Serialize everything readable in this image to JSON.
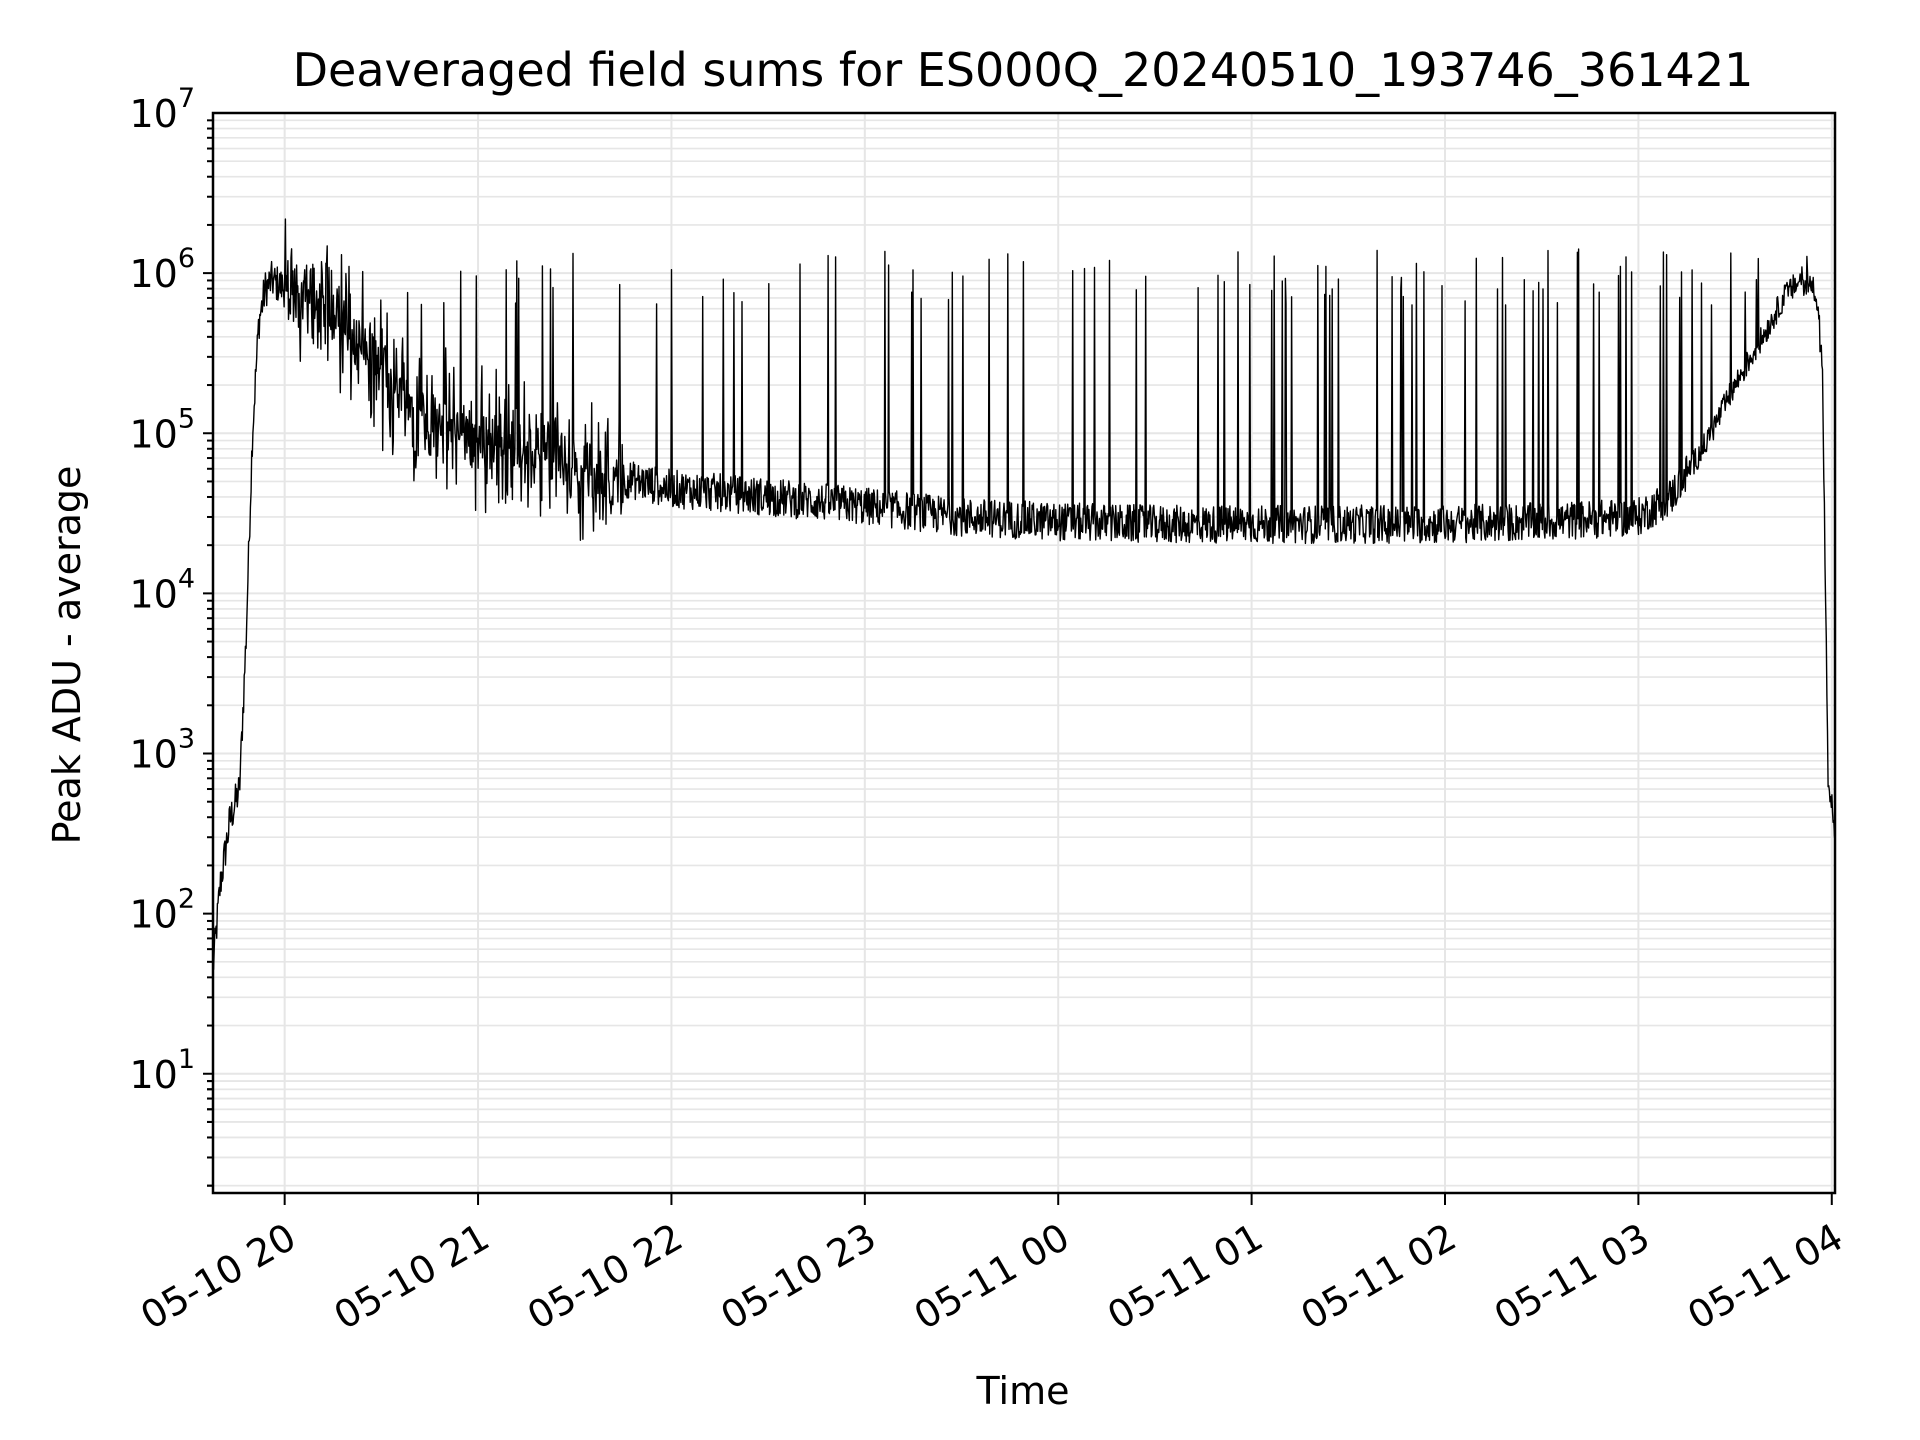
{
  "chart_data": {
    "type": "line",
    "title": "Deaveraged field sums for ES000Q_20240510_193746_361421",
    "xlabel": "Time",
    "ylabel": "Peak ADU - average",
    "yscale": "log",
    "ylim": [
      1.8,
      10000000
    ],
    "xlim": [
      "2024-05-10 19:37:46",
      "2024-05-11 04:01:00"
    ],
    "grid": true,
    "x_ticks": [
      "05-10 20",
      "05-10 21",
      "05-10 22",
      "05-10 23",
      "05-11 00",
      "05-11 01",
      "05-11 02",
      "05-11 03",
      "05-11 04"
    ],
    "y_ticks": [
      {
        "value": 10,
        "base": "10",
        "exp": "1"
      },
      {
        "value": 100,
        "base": "10",
        "exp": "2"
      },
      {
        "value": 1000,
        "base": "10",
        "exp": "3"
      },
      {
        "value": 10000,
        "base": "10",
        "exp": "4"
      },
      {
        "value": 100000,
        "base": "10",
        "exp": "5"
      },
      {
        "value": 1000000,
        "base": "10",
        "exp": "6"
      },
      {
        "value": 10000000,
        "base": "10",
        "exp": "7"
      }
    ],
    "line_color": "#000000",
    "grid_color": "#e6e6e6",
    "series": [
      {
        "x": [
          "2024-05-10 19:37:46",
          "2024-05-10 19:40",
          "2024-05-10 19:43",
          "2024-05-10 19:46",
          "2024-05-10 19:48",
          "2024-05-10 19:50",
          "2024-05-10 19:52",
          "2024-05-10 19:54",
          "2024-05-10 19:56",
          "2024-05-10 19:58",
          "2024-05-10 20:05",
          "2024-05-10 20:10",
          "2024-05-10 20:15",
          "2024-05-10 20:20",
          "2024-05-10 20:25",
          "2024-05-10 20:30",
          "2024-05-10 20:40",
          "2024-05-10 20:50",
          "2024-05-10 21:00",
          "2024-05-10 21:20",
          "2024-05-10 21:40",
          "2024-05-10 22:00",
          "2024-05-10 22:30",
          "2024-05-10 23:00",
          "2024-05-10 23:30",
          "2024-05-11 00:00",
          "2024-05-11 00:30",
          "2024-05-11 01:00",
          "2024-05-11 01:30",
          "2024-05-11 02:00",
          "2024-05-11 02:30",
          "2024-05-11 03:00",
          "2024-05-11 03:10",
          "2024-05-11 03:20",
          "2024-05-11 03:30",
          "2024-05-11 03:40",
          "2024-05-11 03:45",
          "2024-05-11 03:50",
          "2024-05-11 03:55",
          "2024-05-11 03:57",
          "2024-05-11 03:59",
          "2024-05-11 04:00",
          "2024-05-11 04:01"
        ],
        "y": [
          45,
          150,
          380,
          600,
          5000,
          100000,
          500000,
          800000,
          900000,
          850000,
          700000,
          600000,
          500000,
          420000,
          300000,
          250000,
          150000,
          110000,
          90000,
          70000,
          55000,
          45000,
          40000,
          35000,
          30000,
          28000,
          27000,
          27000,
          27000,
          27000,
          28000,
          30000,
          40000,
          80000,
          200000,
          450000,
          700000,
          900000,
          800000,
          300000,
          500,
          450,
          350
        ]
      }
    ]
  }
}
